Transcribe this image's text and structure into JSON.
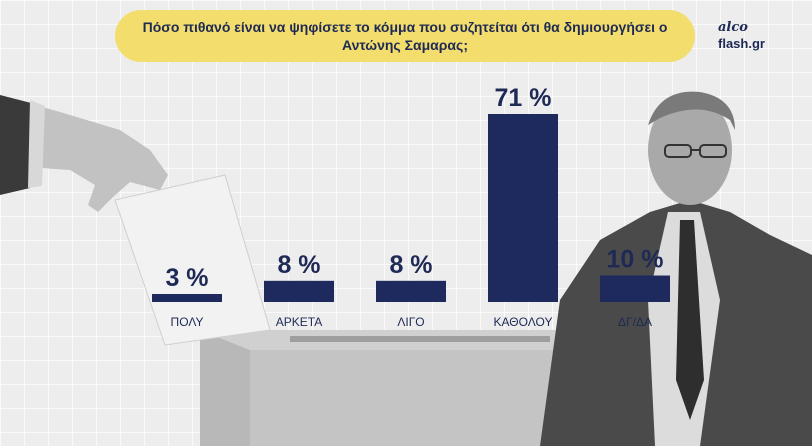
{
  "title": "Πόσο πιθανό είναι να ψηφίσετε το κόμμα που συζητείται ότι θα δημιουργήσει ο Αντώνης Σαμαρας;",
  "logo": {
    "line1": "alco",
    "line2": "flash.gr"
  },
  "colors": {
    "bar": "#1e2a5e",
    "title_bg": "#f3dd6c",
    "text": "#1e2a55"
  },
  "chart_data": {
    "type": "bar",
    "title": "Πόσο πιθανό είναι να ψηφίσετε το κόμμα που συζητείται ότι θα δημιουργήσει ο Αντώνης Σαμαρας;",
    "categories": [
      "ΠΟΛΥ",
      "ΑΡΚΕΤΑ",
      "ΛΙΓΟ",
      "ΚΑΘΟΛΟΥ",
      "ΔΓ/ΔΑ"
    ],
    "values": [
      3,
      8,
      8,
      71,
      10
    ],
    "value_labels": [
      "3 %",
      "8 %",
      "8 %",
      "71 %",
      "10 %"
    ],
    "ylim": [
      0,
      71
    ],
    "grid": false,
    "legend": "none"
  }
}
